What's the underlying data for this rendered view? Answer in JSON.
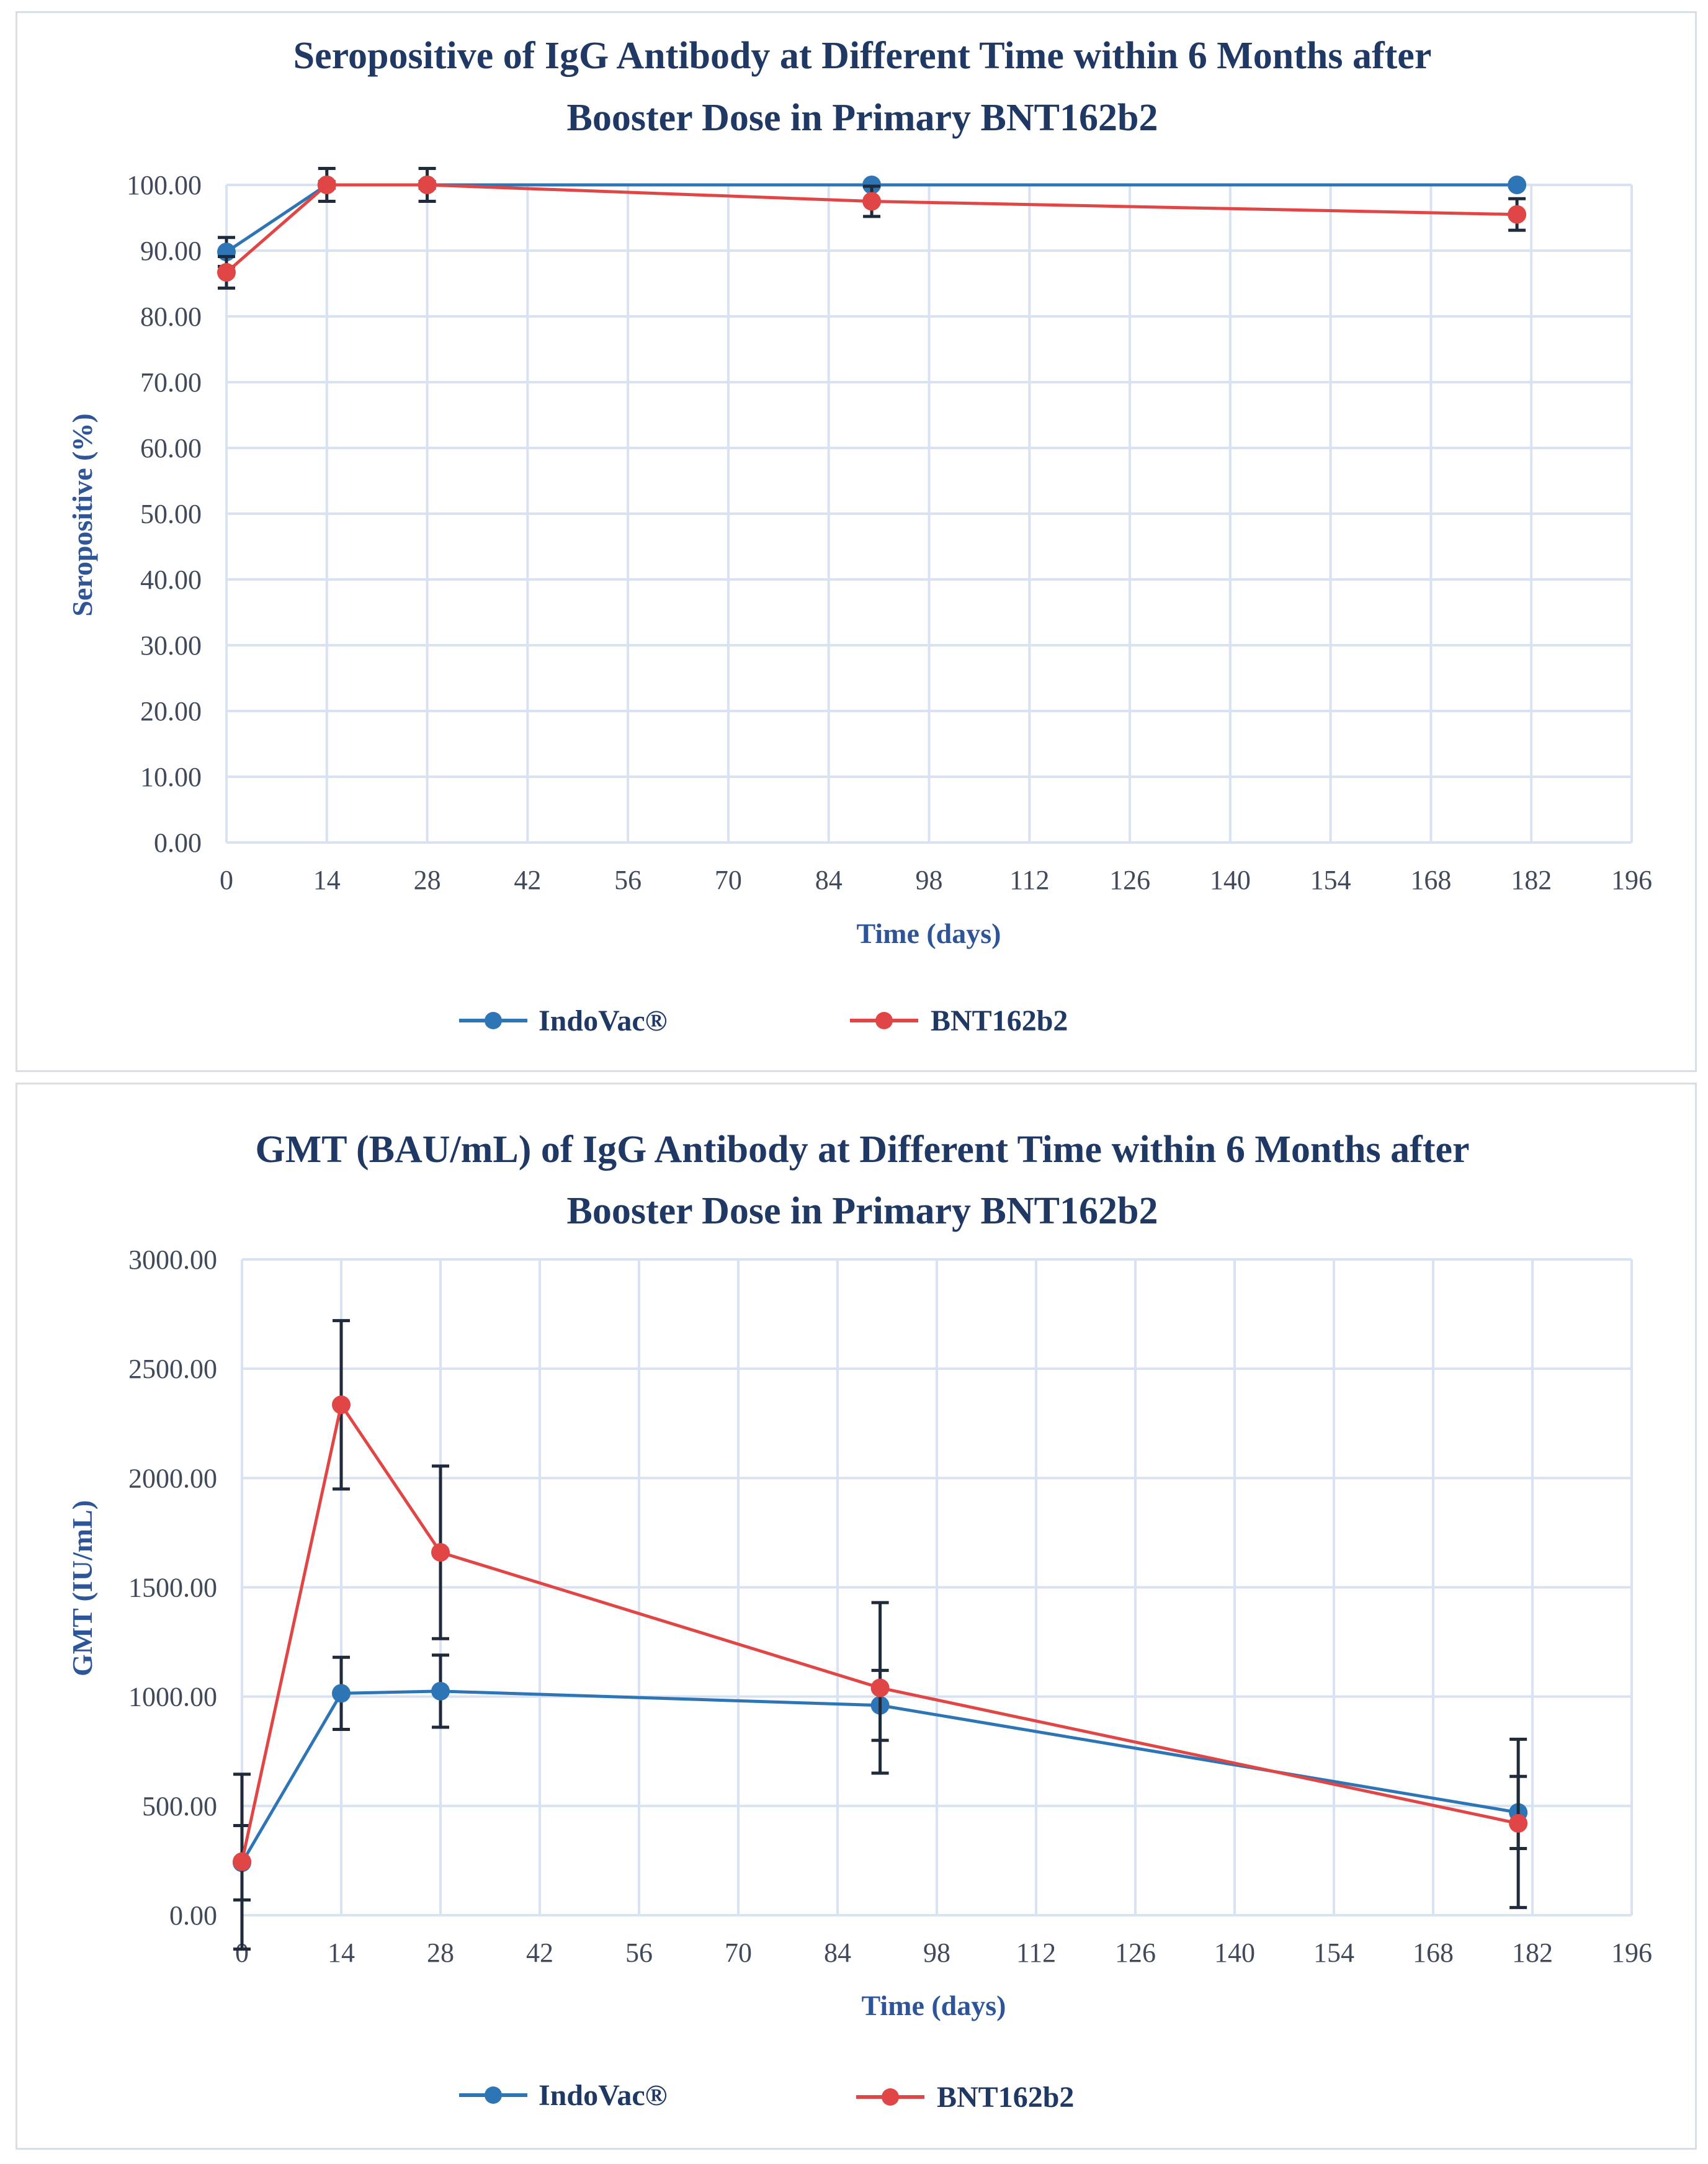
{
  "colors": {
    "indovac": "#2e75b6",
    "bnt": "#e04646",
    "title": "#1f3864",
    "axis_label": "#2e5597",
    "grid": "#d9e2f0",
    "error_bar": "#1f2a3a"
  },
  "chart_data": [
    {
      "type": "line",
      "title_lines": [
        "Seropositive of IgG Antibody at Different Time within 6 Months after",
        "Booster Dose in Primary BNT162b2"
      ],
      "xlabel": "Time (days)",
      "ylabel": "Seropositive (%)",
      "xlim": [
        0,
        196
      ],
      "ylim": [
        0,
        100
      ],
      "x_ticks": [
        0,
        14,
        28,
        42,
        56,
        70,
        84,
        98,
        112,
        126,
        140,
        154,
        168,
        182,
        196
      ],
      "x_tick_labels": [
        "0",
        "14",
        "28",
        "42",
        "56",
        "70",
        "84",
        "98",
        "112",
        "126",
        "140",
        "154",
        "168",
        "182",
        "196"
      ],
      "y_ticks": [
        0,
        10,
        20,
        30,
        40,
        50,
        60,
        70,
        80,
        90,
        100
      ],
      "y_tick_labels": [
        "0.00",
        "10.00",
        "20.00",
        "30.00",
        "40.00",
        "50.00",
        "60.00",
        "70.00",
        "80.00",
        "90.00",
        "100.00"
      ],
      "grid": true,
      "legend_position": "bottom",
      "series": [
        {
          "name": "IndoVac®",
          "color": "#2e75b6",
          "x": [
            0,
            14,
            28,
            90,
            180
          ],
          "y": [
            89.8,
            100,
            100,
            100,
            100
          ],
          "error": [
            2.2,
            0.5,
            0.5,
            0.3,
            0.3
          ]
        },
        {
          "name": "BNT162b2",
          "color": "#e04646",
          "x": [
            0,
            14,
            28,
            90,
            180
          ],
          "y": [
            86.7,
            100,
            100,
            97.5,
            95.5
          ],
          "error": [
            2.4,
            2.5,
            2.5,
            2.3,
            2.4
          ]
        }
      ]
    },
    {
      "type": "line",
      "title_lines": [
        "GMT (BAU/mL) of IgG Antibody at Different Time within 6 Months after",
        "Booster Dose in Primary BNT162b2"
      ],
      "xlabel": "Time (days)",
      "ylabel": "GMT (IU/mL)",
      "xlim": [
        0,
        196
      ],
      "ylim": [
        0,
        3000
      ],
      "x_ticks": [
        0,
        14,
        28,
        42,
        56,
        70,
        84,
        98,
        112,
        126,
        140,
        154,
        168,
        182,
        196
      ],
      "x_tick_labels": [
        "0",
        "14",
        "28",
        "42",
        "56",
        "70",
        "84",
        "98",
        "112",
        "126",
        "140",
        "154",
        "168",
        "182",
        "196"
      ],
      "y_ticks": [
        0,
        500,
        1000,
        1500,
        2000,
        2500,
        3000
      ],
      "y_tick_labels": [
        "0.00",
        "500.00",
        "1000.00",
        "1500.00",
        "2000.00",
        "2500.00",
        "3000.00"
      ],
      "grid": true,
      "legend_position": "bottom",
      "series": [
        {
          "name": "IndoVac®",
          "color": "#2e75b6",
          "x": [
            0,
            14,
            28,
            90,
            180
          ],
          "y": [
            240,
            1015,
            1025,
            960,
            470
          ],
          "error": [
            170,
            165,
            165,
            160,
            165
          ]
        },
        {
          "name": "BNT162b2",
          "color": "#e04646",
          "x": [
            0,
            14,
            28,
            90,
            180
          ],
          "y": [
            245,
            2335,
            1660,
            1040,
            420
          ],
          "error": [
            400,
            385,
            395,
            390,
            385
          ]
        }
      ]
    }
  ]
}
